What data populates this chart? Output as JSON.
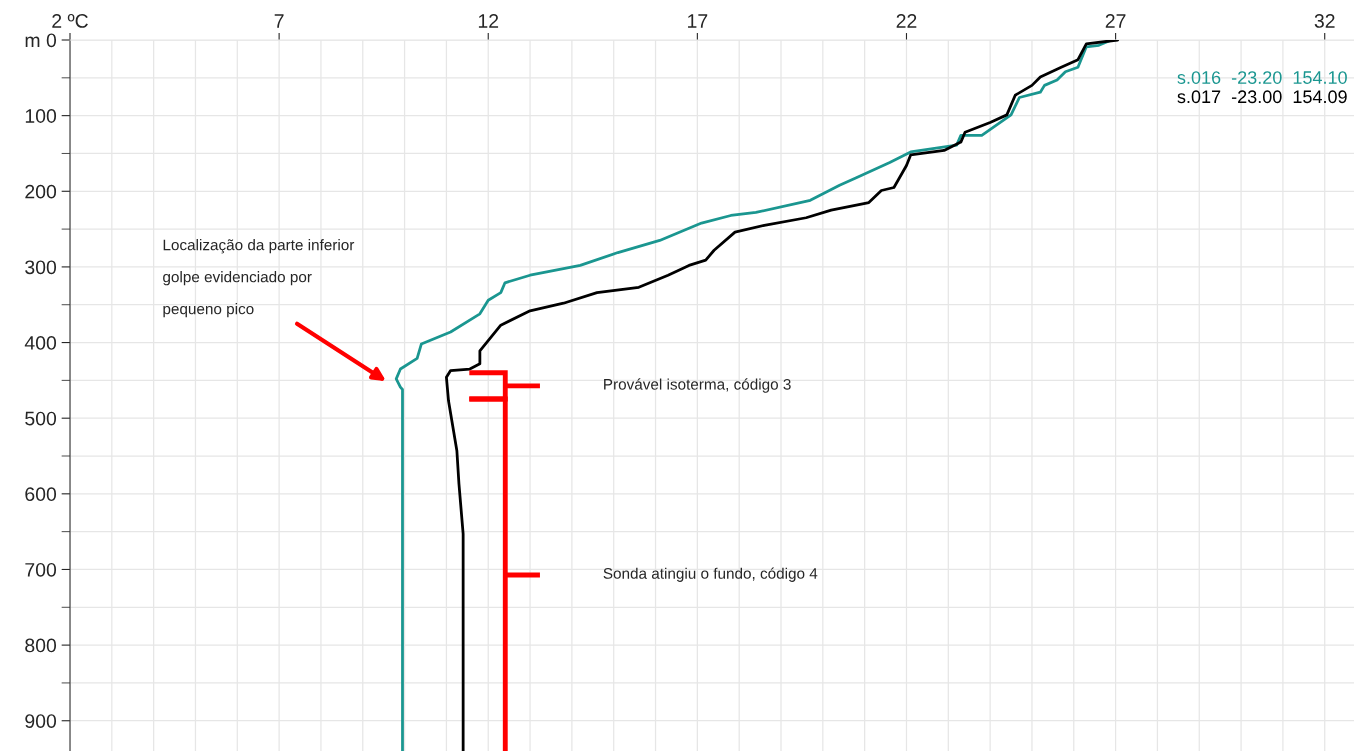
{
  "chart_data": {
    "type": "line",
    "series": [
      {
        "name": "s.016  -23.20  154.10",
        "color": "#1a9690",
        "x": [
          26.9,
          26.6,
          26.3,
          26.1,
          25.8,
          25.6,
          25.3,
          25.2,
          24.7,
          24.5,
          23.8,
          23.3,
          23.2,
          22.1,
          21.6,
          20.8,
          20.4,
          19.7,
          18.4,
          17.8,
          17.1,
          16.1,
          15.1,
          14.2,
          13.0,
          12.4,
          12.3,
          12.0,
          11.8,
          11.1,
          10.4,
          10.3,
          9.9,
          9.8,
          9.9,
          9.95,
          9.95
        ],
        "values": [
          0,
          7,
          9,
          36,
          42,
          53,
          60,
          69,
          76,
          99,
          126,
          126,
          139,
          148,
          162,
          182,
          192,
          212,
          228,
          232,
          242,
          265,
          281,
          298,
          311,
          321,
          334,
          344,
          362,
          386,
          402,
          421,
          435,
          448,
          459,
          462,
          940
        ]
      },
      {
        "name": "s.017  -23.00  154.09",
        "color": "#000000",
        "x": [
          27.05,
          26.3,
          26.1,
          25.7,
          25.2,
          25.0,
          24.6,
          24.4,
          24.0,
          23.4,
          23.3,
          22.9,
          22.1,
          22.0,
          21.7,
          21.4,
          21.1,
          20.2,
          19.6,
          18.6,
          17.9,
          17.4,
          17.2,
          16.8,
          16.3,
          15.6,
          14.6,
          13.8,
          13.0,
          12.3,
          11.8,
          11.8,
          11.56,
          11.1,
          11.0,
          11.05,
          11.25,
          11.3,
          11.4,
          11.4
        ],
        "values": [
          0,
          5,
          26,
          36,
          49,
          60,
          73,
          99,
          109,
          122,
          135,
          146,
          152,
          166,
          195,
          199,
          215,
          225,
          235,
          245,
          254,
          278,
          291,
          298,
          311,
          327,
          334,
          348,
          358,
          377,
          411,
          428,
          435,
          437,
          446,
          477,
          543,
          587,
          653,
          940
        ]
      }
    ],
    "xlim": [
      2,
      32.7
    ],
    "ylim": [
      940,
      0
    ],
    "xticks": [
      {
        "value": 2,
        "label": "2 ºC"
      },
      {
        "value": 3,
        "label": null
      },
      {
        "value": 4,
        "label": null
      },
      {
        "value": 5,
        "label": null
      },
      {
        "value": 6,
        "label": null
      },
      7,
      {
        "value": 8,
        "label": null
      },
      {
        "value": 9,
        "label": null
      },
      {
        "value": 10,
        "label": null
      },
      {
        "value": 11,
        "label": null
      },
      12,
      {
        "value": 13,
        "label": null
      },
      {
        "value": 14,
        "label": null
      },
      {
        "value": 15,
        "label": null
      },
      {
        "value": 16,
        "label": null
      },
      17,
      {
        "value": 18,
        "label": null
      },
      {
        "value": 19,
        "label": null
      },
      {
        "value": 20,
        "label": null
      },
      {
        "value": 21,
        "label": null
      },
      22,
      {
        "value": 23,
        "label": null
      },
      {
        "value": 24,
        "label": null
      },
      {
        "value": 25,
        "label": null
      },
      {
        "value": 26,
        "label": null
      },
      27,
      {
        "value": 28,
        "label": null
      },
      {
        "value": 29,
        "label": null
      },
      {
        "value": 30,
        "label": null
      },
      {
        "value": 31,
        "label": null
      },
      32
    ],
    "yticks": [
      {
        "value": 0,
        "label": "m 0"
      },
      {
        "value": 50,
        "label": null
      },
      100,
      {
        "value": 150,
        "label": null
      },
      200,
      {
        "value": 250,
        "label": null
      },
      300,
      {
        "value": 350,
        "label": null
      },
      400,
      {
        "value": 450,
        "label": null
      },
      500,
      {
        "value": 550,
        "label": null
      },
      600,
      {
        "value": 650,
        "label": null
      },
      700,
      {
        "value": 750,
        "label": null
      },
      800,
      {
        "value": 850,
        "label": null
      },
      900
    ],
    "grid": true,
    "legend": false,
    "marker": "none",
    "line_style": "solid",
    "annotations": [
      "Localização da parte inferior\ngolpe evidenciado por\npequeno pico",
      "Provável isoterma, código 3",
      "Sonda atingiu o fundo, código 4"
    ]
  }
}
